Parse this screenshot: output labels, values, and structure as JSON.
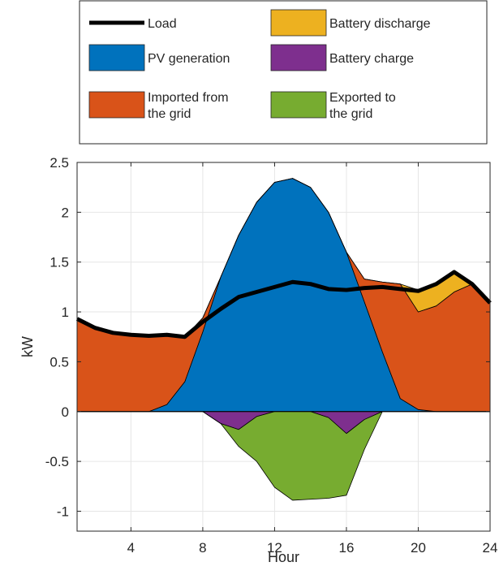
{
  "chart_data": {
    "type": "area",
    "xlabel": "Hour",
    "ylabel": "kW",
    "xlim": [
      1,
      24
    ],
    "ylim": [
      -1.2,
      2.5
    ],
    "xticks": [
      4,
      8,
      12,
      16,
      20,
      24
    ],
    "xtick_labels": [
      "4",
      "8",
      "12",
      "16",
      "20",
      "24"
    ],
    "yticks": [
      -1,
      -0.5,
      0,
      0.5,
      1,
      1.5,
      2,
      2.5
    ],
    "ytick_labels": [
      "-1",
      "-0.5",
      "0",
      "0.5",
      "1",
      "1.5",
      "2",
      "2.5"
    ],
    "grid": true,
    "legend_position": "top-outside",
    "x": [
      1,
      2,
      3,
      4,
      5,
      6,
      7,
      8,
      9,
      10,
      11,
      12,
      13,
      14,
      15,
      16,
      17,
      18,
      19,
      20,
      21,
      22,
      23,
      24
    ],
    "series": [
      {
        "name": "Load",
        "kind": "line",
        "color": "#000000",
        "values": [
          0.93,
          0.84,
          0.79,
          0.77,
          0.76,
          0.77,
          0.75,
          0.9,
          1.03,
          1.15,
          1.2,
          1.25,
          1.3,
          1.28,
          1.23,
          1.22,
          1.24,
          1.25,
          1.23,
          1.21,
          1.28,
          1.4,
          1.28,
          1.09
        ]
      },
      {
        "name": "PV generation",
        "kind": "area",
        "color": "#0072bd",
        "values": [
          0,
          0,
          0,
          0,
          0,
          0.07,
          0.3,
          0.8,
          1.35,
          1.77,
          2.1,
          2.3,
          2.34,
          2.25,
          2.0,
          1.6,
          1.1,
          0.6,
          0.13,
          0.02,
          0,
          0,
          0,
          0
        ]
      },
      {
        "name": "Imported from the grid",
        "kind": "area",
        "color": "#d95319",
        "values": [
          0.93,
          0.84,
          0.79,
          0.77,
          0.76,
          0.7,
          0.45,
          0.14,
          0,
          0,
          0,
          0,
          0,
          0,
          0,
          0,
          0.23,
          0.7,
          1.15,
          0.98,
          1.06,
          1.2,
          1.28,
          1.09
        ]
      },
      {
        "name": "Battery discharge",
        "kind": "area",
        "color": "#edb120",
        "values": [
          0,
          0,
          0,
          0,
          0,
          0,
          0,
          0,
          0,
          0,
          0,
          0,
          0,
          0,
          0,
          0,
          0,
          0,
          0,
          0.22,
          0.22,
          0.2,
          0,
          0
        ]
      },
      {
        "name": "Battery charge",
        "kind": "area",
        "color": "#7e2f8e",
        "values": [
          0,
          0,
          0,
          0,
          0,
          0,
          0,
          0,
          -0.12,
          -0.18,
          -0.05,
          0,
          0,
          0,
          -0.06,
          -0.22,
          -0.08,
          0,
          0,
          0,
          0,
          0,
          0,
          0
        ]
      },
      {
        "name": "Exported to the grid",
        "kind": "area",
        "color": "#77ac30",
        "values": [
          0,
          0,
          0,
          0,
          0,
          0,
          0,
          0,
          0,
          -0.17,
          -0.45,
          -0.76,
          -0.89,
          -0.88,
          -0.81,
          -0.62,
          -0.3,
          0,
          0,
          0,
          0,
          0,
          0,
          0
        ]
      }
    ],
    "legend": [
      {
        "label": "Load",
        "color": "#000000",
        "kind": "line"
      },
      {
        "label": "Battery discharge",
        "color": "#edb120",
        "kind": "area"
      },
      {
        "label": "PV generation",
        "color": "#0072bd",
        "kind": "area"
      },
      {
        "label": "Battery charge",
        "color": "#7e2f8e",
        "kind": "area"
      },
      {
        "label": "Imported from\nthe grid",
        "color": "#d95319",
        "kind": "area"
      },
      {
        "label": "Exported to\nthe grid",
        "color": "#77ac30",
        "kind": "area"
      }
    ]
  }
}
